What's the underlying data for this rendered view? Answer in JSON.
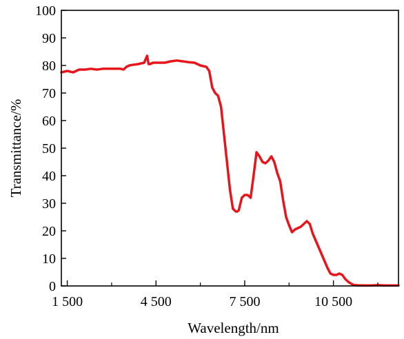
{
  "chart_data": {
    "type": "line",
    "title": "",
    "xlabel": "Wavelength/nm",
    "ylabel": "Transmittance/%",
    "xlim": [
      1300,
      12700
    ],
    "ylim": [
      0,
      100
    ],
    "x_ticks": [
      {
        "value": 1500,
        "label": "1 500"
      },
      {
        "value": 4500,
        "label": "4 500"
      },
      {
        "value": 7500,
        "label": "7 500"
      },
      {
        "value": 10500,
        "label": "10 500"
      }
    ],
    "x_minor_ticks": [
      3000,
      6000,
      9000,
      12000
    ],
    "y_ticks": [
      0,
      10,
      20,
      30,
      40,
      50,
      60,
      70,
      80,
      90,
      100
    ],
    "grid": false,
    "legend": "none",
    "series": [
      {
        "color": "#e8141b",
        "x": [
          1300,
          1500,
          1700,
          1900,
          2100,
          2300,
          2500,
          2700,
          2900,
          3100,
          3300,
          3400,
          3500,
          3600,
          3700,
          3900,
          4100,
          4200,
          4250,
          4300,
          4400,
          4600,
          4800,
          5000,
          5200,
          5400,
          5600,
          5800,
          6000,
          6200,
          6300,
          6400,
          6500,
          6600,
          6700,
          6800,
          6900,
          7000,
          7100,
          7200,
          7250,
          7300,
          7400,
          7500,
          7600,
          7700,
          7800,
          7900,
          8000,
          8100,
          8200,
          8300,
          8400,
          8500,
          8600,
          8700,
          8800,
          8900,
          9000,
          9100,
          9200,
          9300,
          9400,
          9500,
          9600,
          9700,
          9800,
          9900,
          10000,
          10100,
          10200,
          10300,
          10400,
          10500,
          10600,
          10700,
          10800,
          10900,
          11000,
          11100,
          11200,
          11400,
          11600,
          11800,
          12000,
          12200,
          12400,
          12700
        ],
        "y": [
          77.5,
          78,
          77.5,
          78.5,
          78.5,
          78.8,
          78.5,
          78.8,
          78.8,
          78.8,
          78.8,
          78.5,
          79.5,
          80,
          80.2,
          80.5,
          81,
          83.5,
          80.5,
          80.5,
          81,
          81,
          81,
          81.5,
          81.8,
          81.5,
          81.2,
          81,
          80,
          79.5,
          78,
          72,
          70,
          69,
          65,
          55,
          45,
          35,
          28,
          27,
          27,
          27.5,
          32,
          33,
          33,
          32,
          40,
          48.5,
          47,
          45,
          44.5,
          45.5,
          47,
          45,
          41,
          38,
          31,
          25,
          22,
          19.5,
          20.5,
          21,
          21.5,
          22.5,
          23.5,
          22.5,
          19,
          16.5,
          14,
          11.5,
          9,
          6.5,
          4.5,
          4,
          4,
          4.5,
          4,
          2.5,
          1.5,
          0.8,
          0.3,
          0.2,
          0.2,
          0.2,
          0.3,
          0.2,
          0.2,
          0.2
        ]
      }
    ]
  }
}
